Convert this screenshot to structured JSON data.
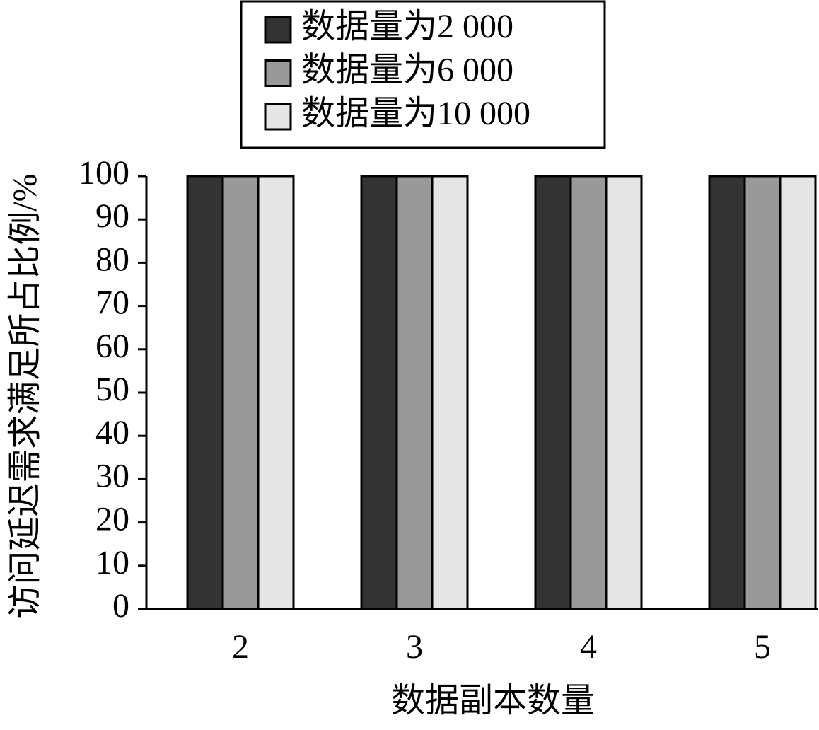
{
  "chart_data": {
    "type": "bar",
    "categories": [
      "2",
      "3",
      "4",
      "5"
    ],
    "series": [
      {
        "name": "数据量为2 000",
        "color": "#333333",
        "values": [
          100,
          100,
          100,
          100
        ]
      },
      {
        "name": "数据量为6 000",
        "color": "#999999",
        "values": [
          100,
          100,
          100,
          100
        ]
      },
      {
        "name": "数据量为10 000",
        "color": "#e5e5e5",
        "values": [
          100,
          100,
          100,
          100
        ]
      }
    ],
    "x_label": "数据副本数量",
    "y_label": "访问延迟需求满足所占比例/%",
    "ylim": [
      0,
      100
    ],
    "yticks": [
      0,
      10,
      20,
      30,
      40,
      50,
      60,
      70,
      80,
      90,
      100
    ],
    "legend": "top"
  }
}
